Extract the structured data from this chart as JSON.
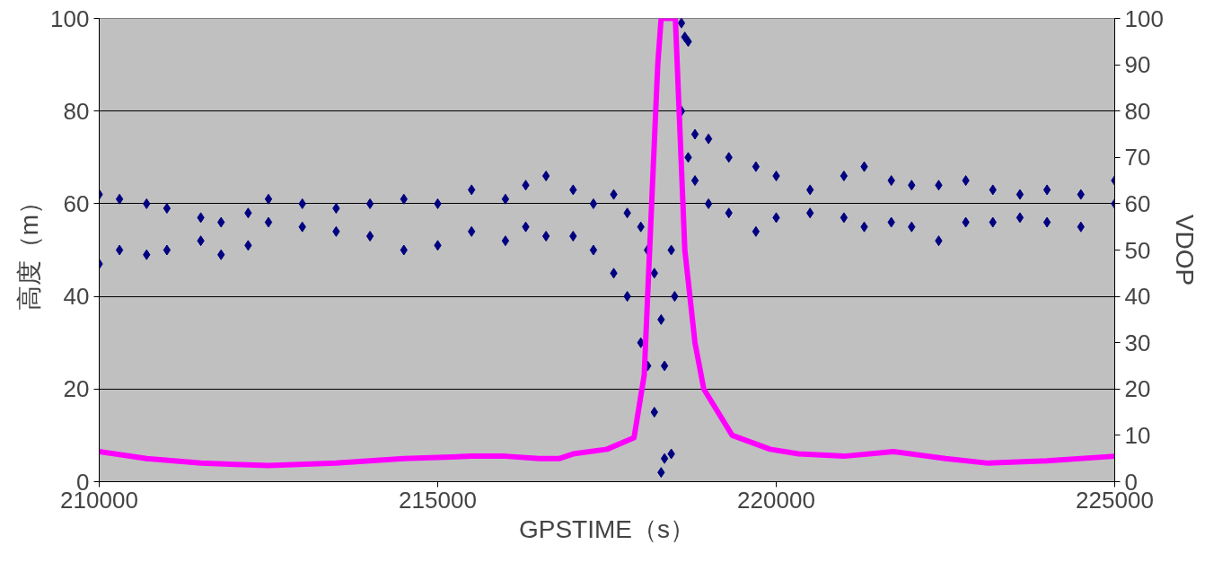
{
  "chart_data": {
    "type": "scatter",
    "xlabel": "GPSTIME（s）",
    "ylabel": "高度（m）",
    "y2label": "VDOP",
    "xlim": [
      210000,
      225000
    ],
    "xticks": [
      210000,
      215000,
      220000,
      225000
    ],
    "ylim": [
      0,
      100
    ],
    "yticks": [
      0,
      20,
      40,
      60,
      80,
      100
    ],
    "y2lim": [
      0,
      100
    ],
    "y2ticks": [
      0,
      10,
      20,
      30,
      40,
      50,
      60,
      70,
      80,
      90,
      100
    ],
    "grid": "y",
    "series": [
      {
        "color": "#000080",
        "marker": "diamond",
        "x": [
          210000,
          210000,
          210300,
          210300,
          210700,
          210700,
          211000,
          211000,
          211500,
          211500,
          211800,
          211800,
          212200,
          212200,
          212500,
          212500,
          213000,
          213000,
          213500,
          213500,
          214000,
          214000,
          214500,
          214500,
          215000,
          215000,
          215500,
          215500,
          216000,
          216000,
          216300,
          216300,
          216600,
          216600,
          217000,
          217000,
          217300,
          217300,
          217600,
          217600,
          217800,
          217800,
          218000,
          218000,
          218100,
          218100,
          218200,
          218200,
          218300,
          218300,
          218350,
          218350,
          218450,
          218450,
          218500,
          218650,
          218600,
          218600,
          218700,
          218700,
          218800,
          218800,
          219000,
          219000,
          219300,
          219300,
          219700,
          219700,
          220000,
          220000,
          220500,
          220500,
          221000,
          221000,
          221300,
          221300,
          221700,
          221700,
          222000,
          222000,
          222400,
          222400,
          222800,
          222800,
          223200,
          223200,
          223600,
          223600,
          224000,
          224000,
          224500,
          224500,
          225000,
          225000
        ],
        "values": [
          47,
          62,
          50,
          61,
          49,
          60,
          50,
          59,
          52,
          57,
          49,
          56,
          51,
          58,
          56,
          61,
          55,
          60,
          54,
          59,
          53,
          60,
          50,
          61,
          51,
          60,
          54,
          63,
          52,
          61,
          55,
          64,
          53,
          66,
          53,
          63,
          50,
          60,
          45,
          62,
          40,
          58,
          30,
          55,
          25,
          50,
          15,
          45,
          2,
          35,
          5,
          25,
          6,
          50,
          40,
          96,
          80,
          99,
          70,
          95,
          65,
          75,
          60,
          74,
          58,
          70,
          54,
          68,
          57,
          66,
          58,
          63,
          57,
          66,
          55,
          68,
          56,
          65,
          55,
          64,
          52,
          64,
          56,
          65,
          56,
          63,
          57,
          62,
          56,
          63,
          55,
          62,
          60,
          65
        ]
      },
      {
        "type": "line",
        "color": "#ff00ff",
        "x": [
          210000,
          210700,
          211500,
          212500,
          213500,
          214500,
          215500,
          216000,
          216500,
          216800,
          217000,
          217500,
          217900,
          218050,
          218160,
          218250,
          218300,
          218400,
          218510,
          218650,
          218800,
          218930,
          219350,
          219910,
          220330,
          221000,
          221730,
          222500,
          223130,
          224000,
          225000
        ],
        "values": [
          6.5,
          5,
          4,
          3.5,
          4,
          5,
          5.5,
          5.5,
          5,
          5,
          6,
          7,
          9.5,
          23,
          60,
          90,
          100,
          100,
          100,
          50,
          30,
          20,
          10,
          7,
          6,
          5.5,
          6.5,
          5,
          4,
          4.5,
          5.5
        ]
      }
    ]
  }
}
